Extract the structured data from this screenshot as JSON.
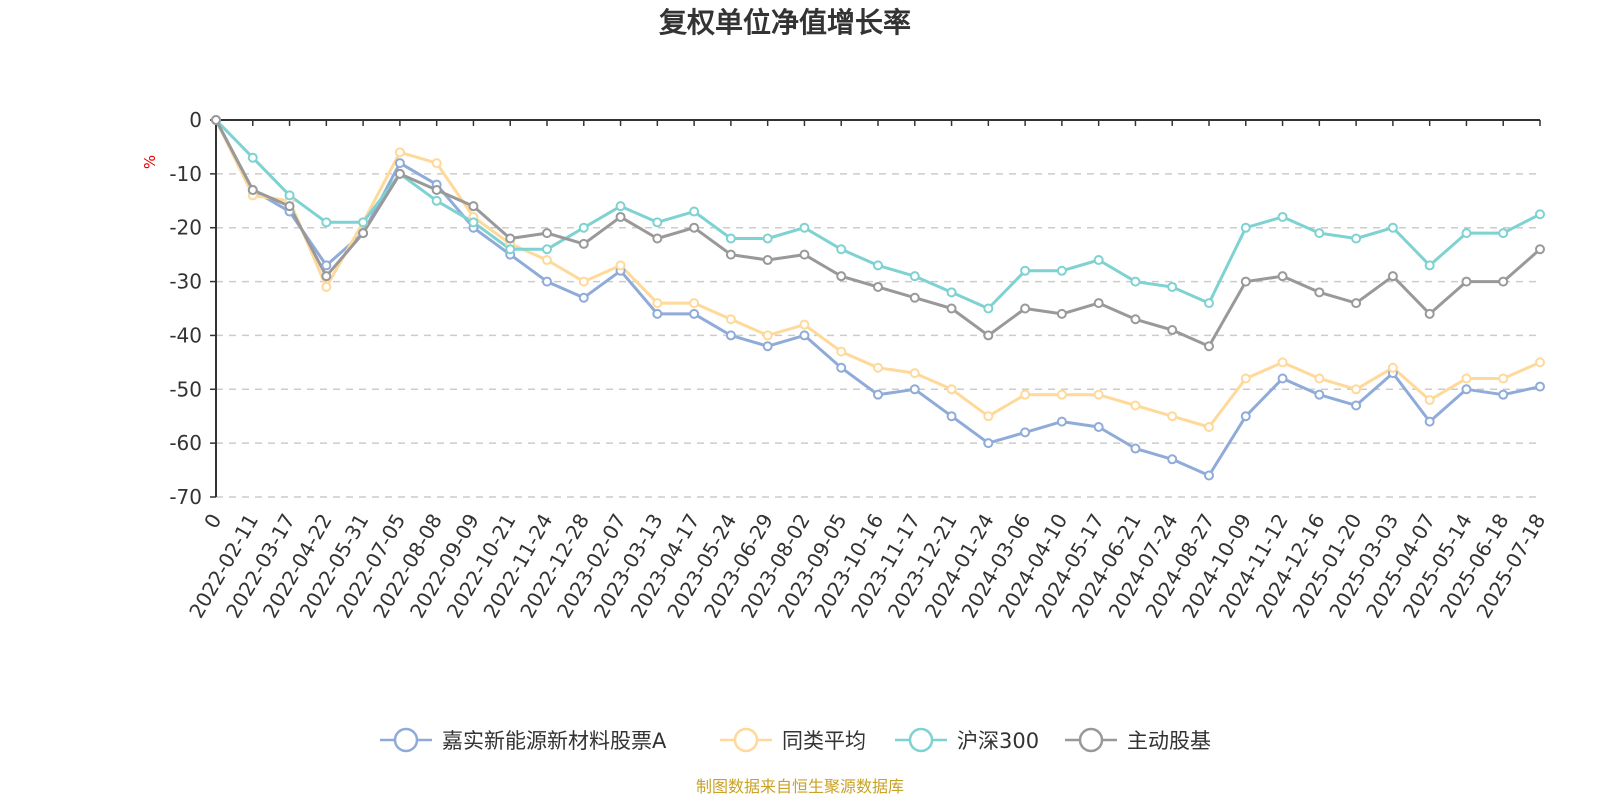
{
  "chart_data": {
    "type": "line",
    "title": "复权单位净值增长率",
    "y_unit": "%",
    "ylim": [
      -70,
      0
    ],
    "y_ticks": [
      0,
      -10,
      -20,
      -30,
      -40,
      -50,
      -60,
      -70
    ],
    "grid": true,
    "legend_position": "bottom",
    "source": "制图数据来自恒生聚源数据库",
    "x_tick_labels": [
      "0",
      "2022-02-11",
      "2022-03-17",
      "2022-04-22",
      "2022-05-31",
      "2022-07-05",
      "2022-08-08",
      "2022-09-09",
      "2022-10-21",
      "2022-11-24",
      "2022-12-28",
      "2023-02-07",
      "2023-03-13",
      "2023-04-17",
      "2023-05-24",
      "2023-06-29",
      "2023-08-02",
      "2023-09-05",
      "2023-10-16",
      "2023-11-17",
      "2023-12-21",
      "2024-01-24",
      "2024-03-06",
      "2024-04-10",
      "2024-05-17",
      "2024-06-21",
      "2024-07-24",
      "2024-08-27",
      "2024-10-09",
      "2024-11-12",
      "2024-12-16",
      "2025-01-20",
      "2025-03-03",
      "2025-04-07",
      "2025-05-14",
      "2025-06-18",
      "2025-07-18"
    ],
    "x": [
      "0",
      "2022-02-11",
      "2022-03-17",
      "2022-04-22",
      "2022-05-31",
      "2022-07-05",
      "2022-08-08",
      "2022-09-09",
      "2022-10-21",
      "2022-11-24",
      "2022-12-28",
      "2023-02-07",
      "2023-03-13",
      "2023-04-17",
      "2023-05-24",
      "2023-06-29",
      "2023-08-02",
      "2023-09-05",
      "2023-10-16",
      "2023-11-17",
      "2023-12-21",
      "2024-01-24",
      "2024-03-06",
      "2024-04-10",
      "2024-05-17",
      "2024-06-21",
      "2024-07-24",
      "2024-08-27",
      "2024-10-09",
      "2024-11-12",
      "2024-12-16",
      "2025-01-20",
      "2025-03-03",
      "2025-04-07",
      "2025-05-14",
      "2025-06-18",
      "2025-07-18"
    ],
    "series": [
      {
        "name": "嘉实新能源新材料股票A",
        "color": "#8fabd9",
        "values": [
          0,
          -13,
          -17,
          -27,
          -21,
          -8,
          -12,
          -20,
          -25,
          -30,
          -33,
          -28,
          -36,
          -36,
          -40,
          -42,
          -40,
          -46,
          -51,
          -50,
          -55,
          -60,
          -58,
          -56,
          -57,
          -61,
          -63,
          -66,
          -55,
          -48,
          -51,
          -53,
          -47,
          -56,
          -50,
          -51,
          -49.5
        ]
      },
      {
        "name": "同类平均",
        "color": "#ffd99a",
        "values": [
          0,
          -14,
          -15,
          -31,
          -19,
          -6,
          -8,
          -18,
          -23,
          -26,
          -30,
          -27,
          -34,
          -34,
          -37,
          -40,
          -38,
          -43,
          -46,
          -47,
          -50,
          -55,
          -51,
          -51,
          -51,
          -53,
          -55,
          -57,
          -48,
          -45,
          -48,
          -50,
          -46,
          -52,
          -48,
          -48,
          -45
        ]
      },
      {
        "name": "沪深300",
        "color": "#7fd2d2",
        "values": [
          0,
          -7,
          -14,
          -19,
          -19,
          -10,
          -15,
          -19,
          -24,
          -24,
          -20,
          -16,
          -19,
          -17,
          -22,
          -22,
          -20,
          -24,
          -27,
          -29,
          -32,
          -35,
          -28,
          -28,
          -26,
          -30,
          -31,
          -34,
          -20,
          -18,
          -21,
          -22,
          -20,
          -27,
          -21,
          -21,
          -17.5
        ]
      },
      {
        "name": "主动股基",
        "color": "#999999",
        "values": [
          0,
          -13,
          -16,
          -29,
          -21,
          -10,
          -13,
          -16,
          -22,
          -21,
          -23,
          -18,
          -22,
          -20,
          -25,
          -26,
          -25,
          -29,
          -31,
          -33,
          -35,
          -40,
          -35,
          -36,
          -34,
          -37,
          -39,
          -42,
          -30,
          -29,
          -32,
          -34,
          -29,
          -36,
          -30,
          -30,
          -24
        ]
      }
    ]
  }
}
